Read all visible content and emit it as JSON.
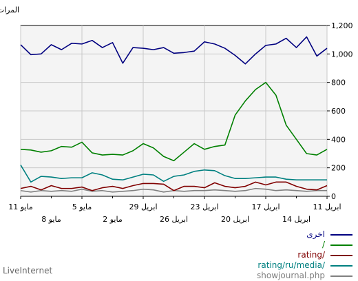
{
  "chart_data": {
    "type": "line",
    "ylabel": "المرات",
    "ylim": [
      0,
      1200
    ],
    "yticks": [
      "0",
      "200",
      "400",
      "600",
      "800",
      "1,000",
      "1,200"
    ],
    "x_ticks_upper": [
      "11 مايو",
      "5 مايو",
      "29 ابريل",
      "23 ابريل",
      "17 ابريل",
      "11 ابريل"
    ],
    "x_ticks_lower": [
      "8 مايو",
      "2 مايو",
      "26 ابريل",
      "20 ابريل",
      "14 ابريل"
    ],
    "grid": true,
    "legend_position": "bottom-right",
    "n_points": 31,
    "series": [
      {
        "name": "اخرى",
        "color": "#000080",
        "values": [
          1065,
          995,
          1000,
          1065,
          1030,
          1075,
          1070,
          1095,
          1045,
          1080,
          935,
          1045,
          1040,
          1030,
          1045,
          1005,
          1010,
          1020,
          1085,
          1070,
          1040,
          990,
          930,
          1000,
          1060,
          1070,
          1110,
          1045,
          1120,
          985,
          1040
        ]
      },
      {
        "name": "/",
        "color": "#008000",
        "values": [
          330,
          325,
          310,
          320,
          350,
          345,
          380,
          305,
          290,
          295,
          290,
          320,
          370,
          340,
          280,
          250,
          310,
          370,
          330,
          350,
          360,
          570,
          670,
          750,
          800,
          710,
          500,
          400,
          300,
          290,
          330
        ]
      },
      {
        "name": "rating/",
        "color": "#800000",
        "values": [
          55,
          70,
          45,
          75,
          55,
          55,
          65,
          40,
          60,
          70,
          55,
          75,
          90,
          90,
          85,
          40,
          70,
          70,
          60,
          95,
          70,
          60,
          70,
          100,
          80,
          100,
          100,
          70,
          50,
          45,
          75
        ]
      },
      {
        "name": "rating/ru/media/",
        "color": "#008080",
        "values": [
          220,
          100,
          140,
          135,
          125,
          130,
          130,
          165,
          150,
          120,
          115,
          135,
          155,
          150,
          105,
          140,
          150,
          175,
          185,
          180,
          145,
          125,
          125,
          130,
          135,
          135,
          120,
          115,
          115,
          115,
          115
        ]
      },
      {
        "name": "showjournal.php",
        "color": "#808080",
        "values": [
          40,
          30,
          40,
          35,
          40,
          35,
          50,
          35,
          40,
          30,
          35,
          40,
          50,
          45,
          30,
          40,
          35,
          40,
          40,
          45,
          40,
          35,
          40,
          55,
          50,
          40,
          45,
          40,
          35,
          40,
          40
        ]
      }
    ]
  },
  "footer": {
    "credit": "LiveInternet"
  }
}
